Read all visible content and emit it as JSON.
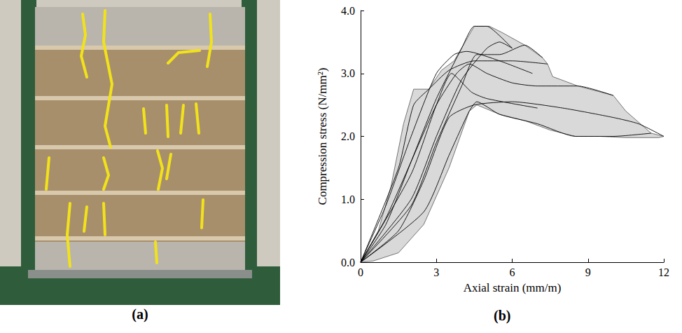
{
  "photo": {
    "panel_label": "(a)"
  },
  "chart_data": {
    "type": "line",
    "panel_label": "(b)",
    "x_label": "Axial strain (mm/m)",
    "y_label": "Compression stress (N/mm²)",
    "xlim": [
      0,
      12
    ],
    "xticks": [
      0,
      3,
      6,
      9,
      12
    ],
    "ylim": [
      0,
      4
    ],
    "yticks": [
      {
        "value": 0,
        "label": "0.0"
      },
      {
        "value": 1,
        "label": "1.0"
      },
      {
        "value": 2,
        "label": "2.0"
      },
      {
        "value": 3,
        "label": "3.0"
      },
      {
        "value": 4,
        "label": "4.0"
      }
    ],
    "grid": false,
    "series": [
      {
        "type": "area",
        "color": "#d9d9d9",
        "x": [
          0,
          0.7,
          1.2,
          1.7,
          2.1,
          2.7,
          3.2,
          3.7,
          4.5,
          5.1,
          5.6,
          6.5,
          7.2,
          7.4,
          7.6,
          8.6,
          10,
          10.5,
          11.5,
          12,
          11.8,
          10.5,
          9.5,
          8.5,
          7.5,
          6.5,
          5.5,
          4.6,
          4.3,
          3.5,
          2.5,
          1.5,
          0.5,
          0
        ],
        "values": [
          0,
          0.5,
          1.2,
          2.2,
          2.75,
          2.75,
          3.05,
          3.2,
          3.75,
          3.75,
          3.65,
          3.45,
          3.25,
          3.15,
          2.95,
          2.8,
          2.65,
          2.4,
          2.05,
          2.0,
          1.98,
          1.98,
          2.0,
          2.0,
          2.1,
          2.25,
          2.35,
          2.5,
          2.4,
          1.5,
          0.6,
          0.15,
          0.02,
          0
        ]
      },
      {
        "type": "line",
        "color": "#000000",
        "x": [
          0,
          1,
          2,
          3,
          4,
          4.5,
          5,
          5.5,
          6
        ],
        "values": [
          0,
          0.6,
          1.6,
          2.6,
          3.4,
          3.75,
          3.75,
          3.6,
          3.4
        ]
      },
      {
        "type": "line",
        "color": "#000000",
        "x": [
          0,
          1.5,
          2.1,
          2.7,
          3.5,
          4.5,
          6,
          7.4
        ],
        "values": [
          0,
          1.5,
          2.5,
          2.75,
          3.05,
          3.2,
          3.2,
          3.15
        ]
      },
      {
        "type": "line",
        "color": "#000000",
        "x": [
          0,
          1,
          2,
          3,
          3.8,
          4.3,
          5,
          6,
          7,
          8.6,
          10
        ],
        "values": [
          0,
          0.7,
          1.6,
          2.5,
          3.0,
          3.15,
          3.0,
          2.85,
          2.8,
          2.8,
          2.65
        ]
      },
      {
        "type": "line",
        "color": "#000000",
        "x": [
          0,
          2,
          3,
          4,
          4.6,
          5.5,
          6.5,
          7.2
        ],
        "values": [
          0,
          0.9,
          1.9,
          2.8,
          3.3,
          3.3,
          3.45,
          3.25
        ]
      },
      {
        "type": "line",
        "color": "#000000",
        "x": [
          0,
          1.5,
          2.5,
          3.5,
          4.5,
          6,
          8,
          10,
          11,
          12
        ],
        "values": [
          0,
          0.5,
          1.3,
          2.3,
          2.5,
          2.55,
          2.45,
          2.3,
          2.2,
          2.0
        ]
      },
      {
        "type": "line",
        "color": "#000000",
        "x": [
          0,
          2,
          3,
          4,
          5,
          5.5,
          6
        ],
        "values": [
          0,
          1.0,
          2.0,
          2.9,
          3.4,
          3.5,
          3.4
        ]
      },
      {
        "type": "line",
        "color": "#000000",
        "x": [
          0,
          2.5,
          3.5,
          4.3,
          4.6,
          5.5,
          7,
          8.5,
          10,
          11.5
        ],
        "values": [
          0,
          0.8,
          1.7,
          2.4,
          2.55,
          2.35,
          2.2,
          2.0,
          2.0,
          2.05
        ]
      },
      {
        "type": "line",
        "color": "#000000",
        "x": [
          0,
          1,
          2,
          3,
          3.7,
          4.2,
          5.5,
          6.8
        ],
        "values": [
          0,
          0.9,
          2.0,
          3.0,
          3.3,
          3.35,
          3.2,
          3.0
        ]
      },
      {
        "type": "line",
        "color": "#000000",
        "x": [
          0,
          2,
          3,
          3.6,
          4.4,
          5,
          7
        ],
        "values": [
          0,
          1.4,
          2.5,
          3.0,
          2.7,
          2.6,
          2.45
        ]
      }
    ]
  }
}
